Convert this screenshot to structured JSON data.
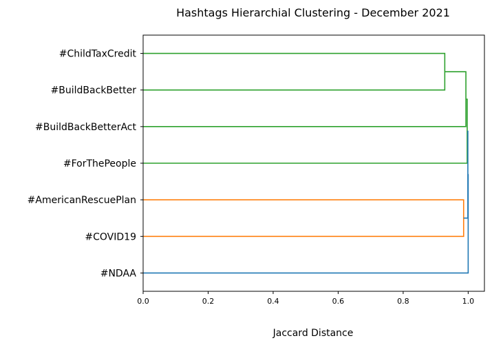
{
  "chart_data": {
    "type": "dendrogram",
    "title": "Hashtags Hierarchial Clustering - December 2021",
    "xlabel": "Jaccard Distance",
    "ylabel": "",
    "xlim": [
      0,
      1.05
    ],
    "xticks": [
      "0.0",
      "0.2",
      "0.4",
      "0.6",
      "0.8",
      "1.0"
    ],
    "xtick_values": [
      0,
      0.2,
      0.4,
      0.6,
      0.8,
      1.0
    ],
    "orientation": "left",
    "leaves": [
      "#ChildTaxCredit",
      "#BuildBackBetter",
      "#BuildBackBetterAct",
      "#ForThePeople",
      "#AmericanRescuePlan",
      "#COVID19",
      "#NDAA"
    ],
    "merges": [
      {
        "id": "c1",
        "children": [
          "#ChildTaxCredit",
          "#BuildBackBetter"
        ],
        "distance": 0.928,
        "color": "#2ca02c"
      },
      {
        "id": "c2",
        "children": [
          "c1",
          "#BuildBackBetterAct"
        ],
        "distance": 0.993,
        "color": "#2ca02c"
      },
      {
        "id": "c3",
        "children": [
          "c2",
          "#ForThePeople"
        ],
        "distance": 0.997,
        "color": "#2ca02c"
      },
      {
        "id": "c4",
        "children": [
          "#AmericanRescuePlan",
          "#COVID19"
        ],
        "distance": 0.986,
        "color": "#ff7f0e"
      },
      {
        "id": "c5",
        "children": [
          "c3",
          "c4"
        ],
        "distance": 0.999,
        "color": "#1f77b4"
      },
      {
        "id": "c6",
        "children": [
          "c5",
          "#NDAA"
        ],
        "distance": 1.0,
        "color": "#1f77b4"
      }
    ],
    "colors": {
      "cluster_a": "#2ca02c",
      "cluster_b": "#ff7f0e",
      "above_threshold": "#1f77b4"
    },
    "grid": false
  }
}
